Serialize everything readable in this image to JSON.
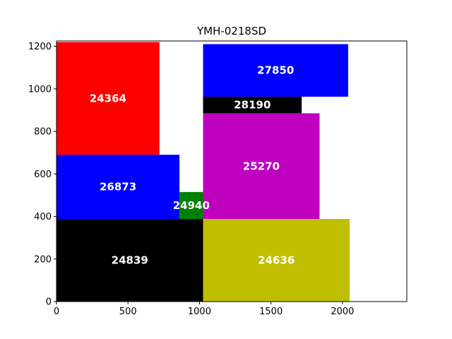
{
  "chart_data": {
    "type": "treemap-rectangles",
    "title": "YMH-0218SD",
    "xlabel": "",
    "ylabel": "",
    "xlim": [
      0,
      2450
    ],
    "ylim": [
      0,
      1225
    ],
    "xticks": [
      0,
      500,
      1000,
      1500,
      2000
    ],
    "yticks": [
      0,
      200,
      400,
      600,
      800,
      1000,
      1200
    ],
    "grid": false,
    "rectangles": [
      {
        "label": "24364",
        "x0": 0,
        "y0": 690,
        "x1": 720,
        "y1": 1220,
        "color": "#ff0000"
      },
      {
        "label": "27850",
        "x0": 1025,
        "y0": 963,
        "x1": 2040,
        "y1": 1210,
        "color": "#0000ff"
      },
      {
        "label": "28190",
        "x0": 1025,
        "y0": 885,
        "x1": 1715,
        "y1": 963,
        "color": "#000000"
      },
      {
        "label": "25270",
        "x0": 1025,
        "y0": 388,
        "x1": 1840,
        "y1": 885,
        "color": "#bf00bf"
      },
      {
        "label": "26873",
        "x0": 0,
        "y0": 388,
        "x1": 860,
        "y1": 690,
        "color": "#0000ff"
      },
      {
        "label": "24940",
        "x0": 860,
        "y0": 388,
        "x1": 1025,
        "y1": 515,
        "color": "#008000"
      },
      {
        "label": "24839",
        "x0": 0,
        "y0": 0,
        "x1": 1025,
        "y1": 388,
        "color": "#000000"
      },
      {
        "label": "24636",
        "x0": 1025,
        "y0": 0,
        "x1": 2050,
        "y1": 388,
        "color": "#bfbf00"
      }
    ]
  }
}
